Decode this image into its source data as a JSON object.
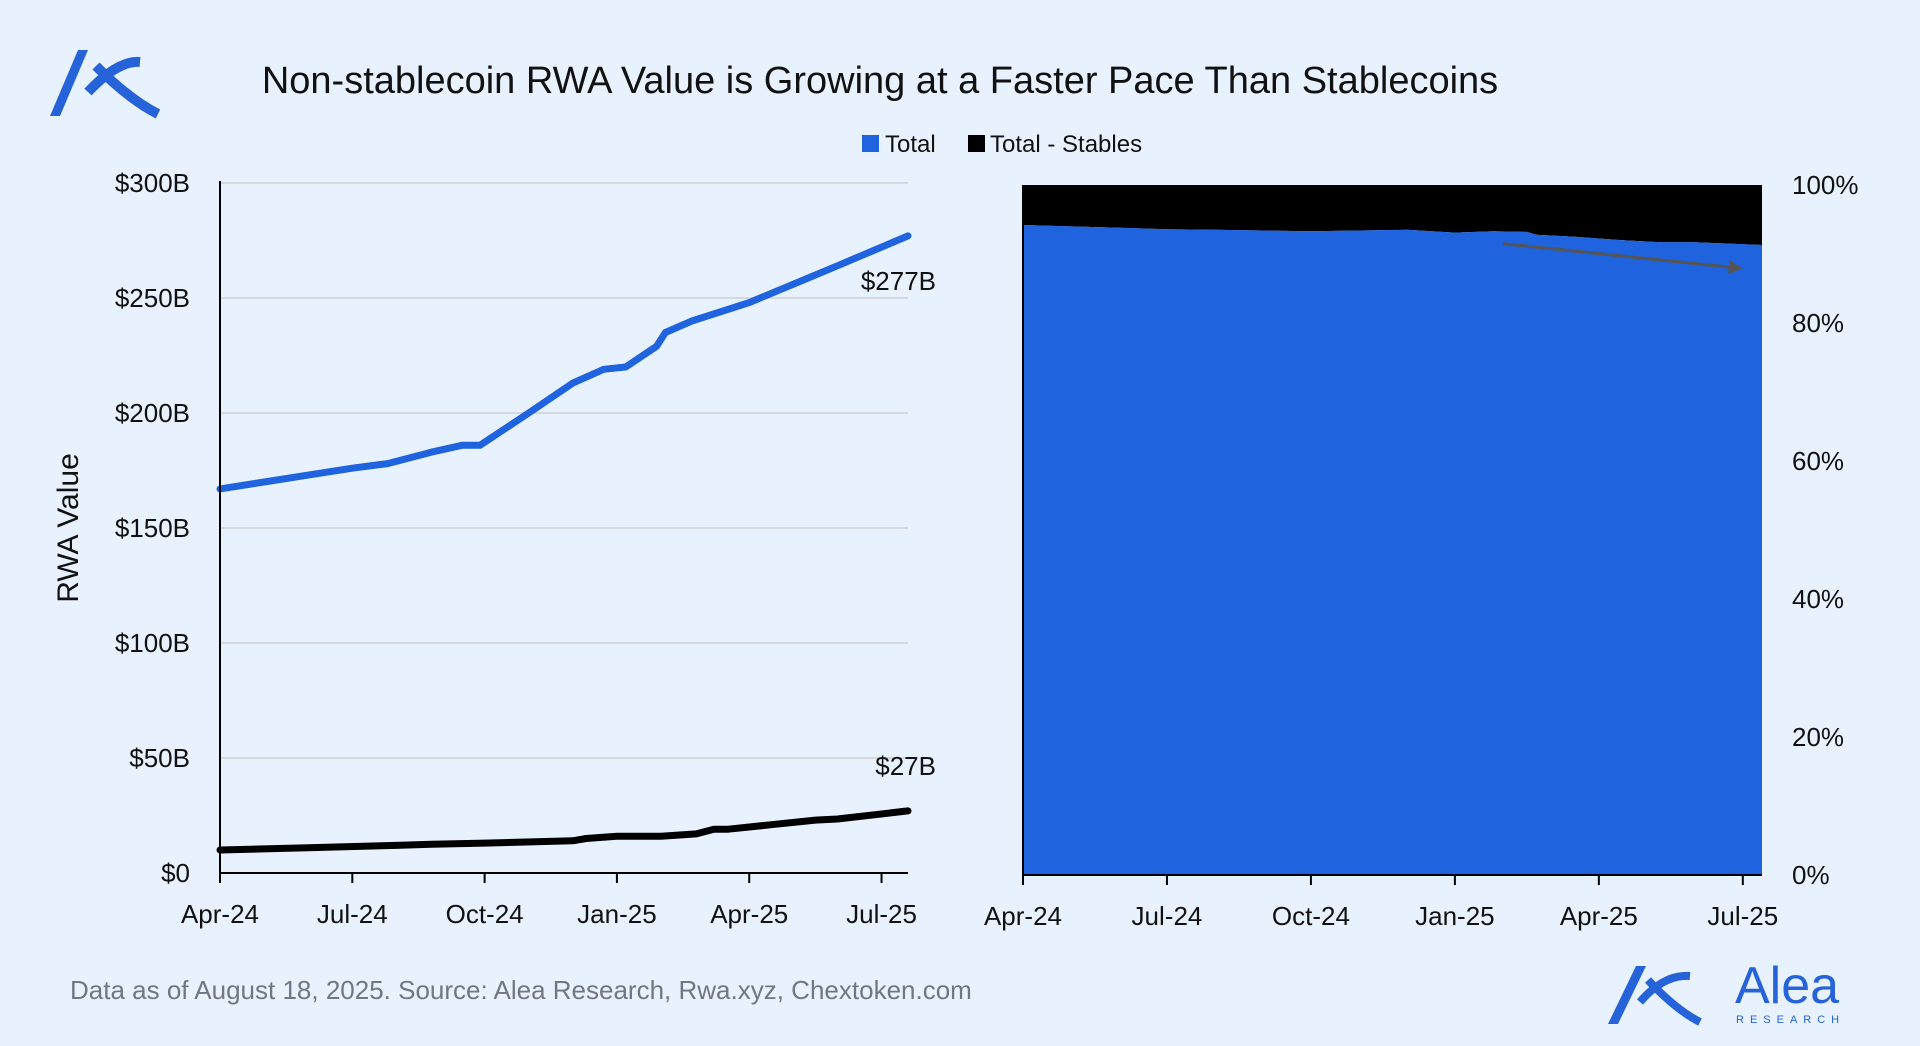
{
  "title": "Non-stablecoin RWA Value is Growing at a Faster Pace Than Stablecoins",
  "colors": {
    "total": "#1f63de",
    "stables_removed": "#000000",
    "grid": "#d4d9e0",
    "background": "#e8f2fe",
    "source_text": "#707782",
    "brand": "#2763d8"
  },
  "legend": [
    {
      "label": "Total",
      "color": "#1f63de"
    },
    {
      "label": "Total - Stables",
      "color": "#000000"
    }
  ],
  "source": "Data as of August 18, 2025. Source: Alea Research, Rwa.xyz, Chextoken.com",
  "brand": {
    "name": "Alea",
    "sub": "RESEARCH",
    "logo_icon": "alea-logo-icon"
  },
  "chart_data": [
    {
      "type": "line",
      "ylabel": "RWA Value",
      "ylim": [
        0,
        300
      ],
      "yticks": [
        0,
        50,
        100,
        150,
        200,
        250,
        300
      ],
      "ytick_labels": [
        "$0",
        "$50B",
        "$100B",
        "$150B",
        "$200B",
        "$250B",
        "$300B"
      ],
      "xlim": [
        0,
        15.6
      ],
      "xticks": [
        0,
        3,
        6,
        9,
        12,
        15
      ],
      "xtick_labels": [
        "Apr-24",
        "Jul-24",
        "Oct-24",
        "Jan-25",
        "Apr-25",
        "Jul-25"
      ],
      "grid": true,
      "series": [
        {
          "name": "Total",
          "x": [
            0,
            1,
            2,
            3,
            3.8,
            4.8,
            5.5,
            5.9,
            7,
            8,
            8.7,
            9.2,
            9.9,
            10.1,
            10.7,
            12,
            13.5,
            14,
            15.6
          ],
          "values": [
            167,
            170,
            173,
            176,
            178,
            183,
            186,
            186,
            200,
            213,
            219,
            220,
            229,
            235,
            240,
            248,
            260,
            264,
            277
          ],
          "end_label": "$277B"
        },
        {
          "name": "Total - Stables",
          "x": [
            0,
            2,
            4,
            4.8,
            6,
            8,
            8.3,
            9,
            10,
            10.8,
            11.2,
            11.5,
            12.5,
            13.5,
            14,
            15.6
          ],
          "values": [
            10,
            11,
            12,
            12.5,
            13,
            14,
            15,
            16,
            16,
            17,
            19,
            19,
            21,
            23,
            23.5,
            27
          ],
          "end_label": "$27B"
        }
      ]
    },
    {
      "type": "area",
      "ylim": [
        0,
        100
      ],
      "yticks": [
        0,
        20,
        40,
        60,
        80,
        100
      ],
      "ytick_labels": [
        "0%",
        "20%",
        "40%",
        "60%",
        "80%",
        "100%"
      ],
      "xlim": [
        0,
        15.4
      ],
      "xticks": [
        0,
        3,
        6,
        9,
        12,
        15
      ],
      "xtick_labels": [
        "Apr-24",
        "Jul-24",
        "Oct-24",
        "Jan-25",
        "Apr-25",
        "Jul-25"
      ],
      "series": [
        {
          "name": "Total",
          "x": [
            0,
            1,
            2,
            3,
            4,
            5,
            6,
            7,
            8,
            9,
            9.8,
            10.5,
            10.7,
            11.5,
            12.5,
            13.3,
            14,
            15.4
          ],
          "values": [
            94.2,
            94.0,
            93.8,
            93.6,
            93.5,
            93.4,
            93.3,
            93.4,
            93.5,
            93.1,
            93.3,
            93.2,
            92.8,
            92.5,
            92.0,
            91.7,
            91.7,
            91.3
          ]
        },
        {
          "name": "Total - Stables",
          "note": "remaining share up to 100%",
          "values_to": 100
        }
      ],
      "trend_arrow": {
        "from": [
          10,
          91.5
        ],
        "to": [
          15,
          87.9
        ],
        "color": "#555555"
      }
    }
  ]
}
